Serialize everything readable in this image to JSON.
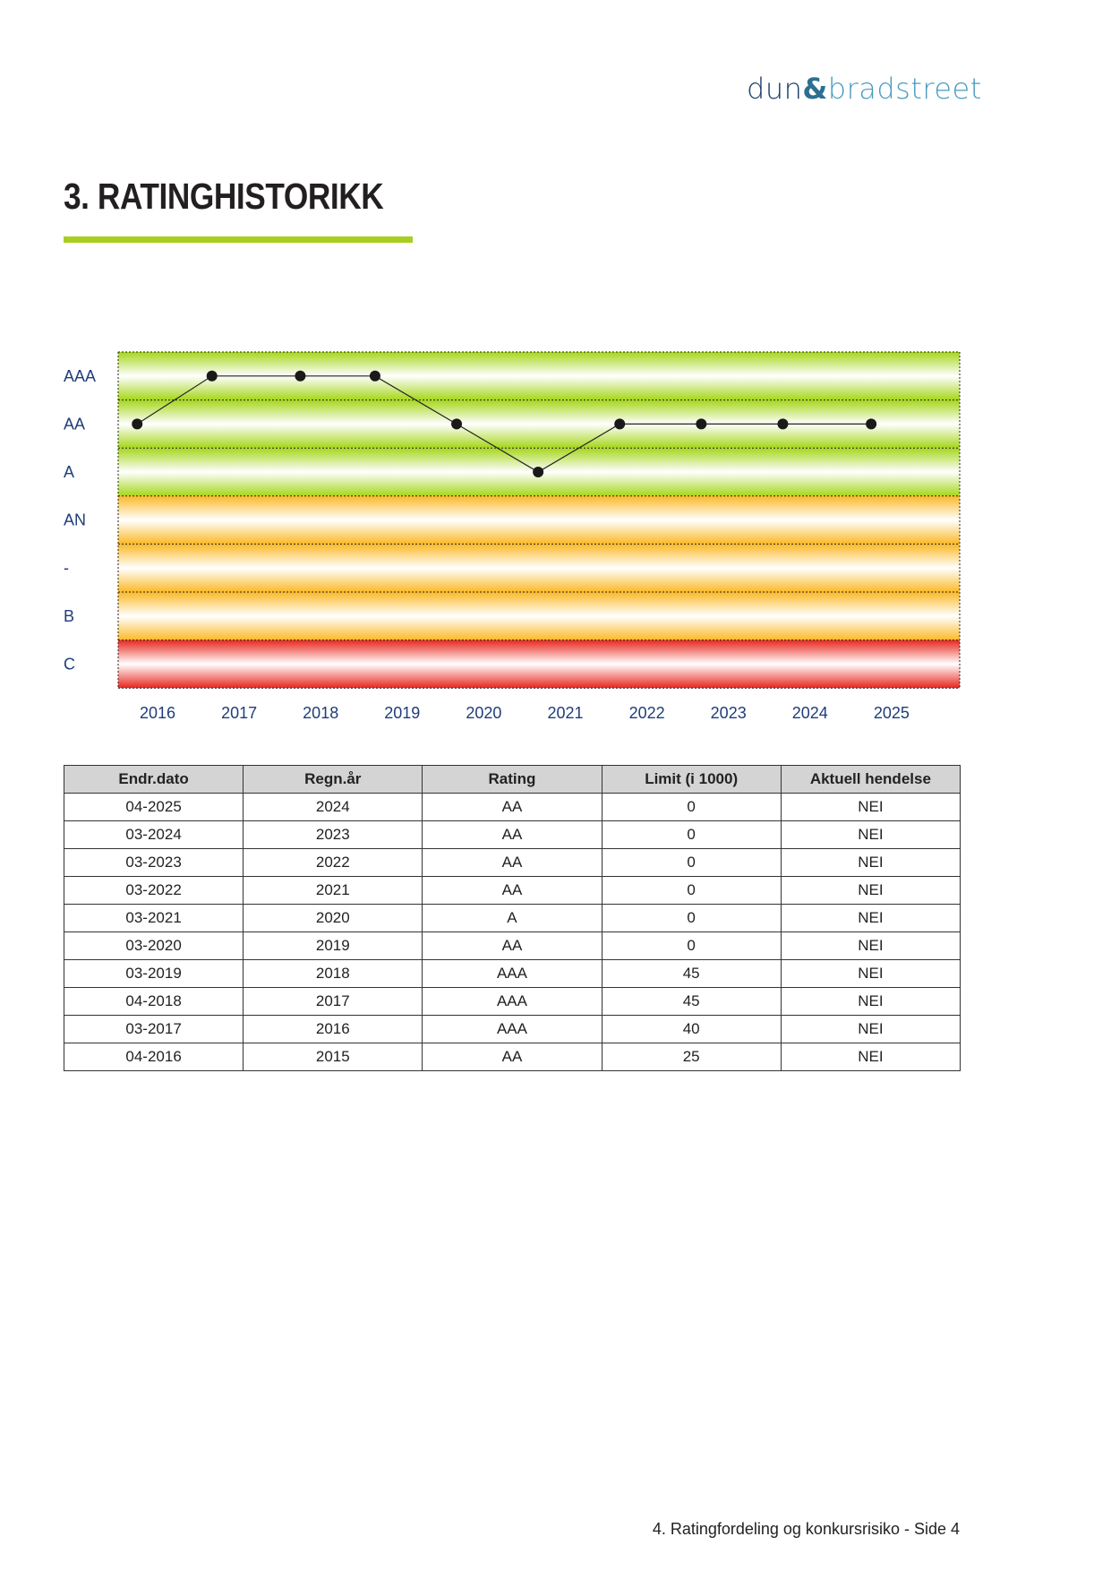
{
  "logo": {
    "text_dun": "dun",
    "text_amp": "&",
    "text_brad": "bradstreet"
  },
  "heading": {
    "title": "3. RATINGHISTORIKK",
    "accent_color": "#a8cf1f"
  },
  "chart_data": {
    "type": "line",
    "y_categories": [
      "AAA",
      "AA",
      "A",
      "AN",
      "-",
      "B",
      "C"
    ],
    "band_colors": {
      "AAA": "#a6d61c",
      "AA": "#a6d61c",
      "A": "#a6d61c",
      "AN": "#fbb928",
      "-": "#fbb928",
      "B": "#fbb928",
      "C": "#e8261d"
    },
    "x_ticks": [
      "2016",
      "2017",
      "2018",
      "2019",
      "2020",
      "2021",
      "2022",
      "2023",
      "2024",
      "2025"
    ],
    "points": [
      {
        "date": "04-2016",
        "rating": "AA"
      },
      {
        "date": "03-2017",
        "rating": "AAA"
      },
      {
        "date": "04-2018",
        "rating": "AAA"
      },
      {
        "date": "03-2019",
        "rating": "AAA"
      },
      {
        "date": "03-2020",
        "rating": "AA"
      },
      {
        "date": "03-2021",
        "rating": "A"
      },
      {
        "date": "03-2022",
        "rating": "AA"
      },
      {
        "date": "03-2023",
        "rating": "AA"
      },
      {
        "date": "03-2024",
        "rating": "AA"
      },
      {
        "date": "04-2025",
        "rating": "AA"
      }
    ],
    "grid": true,
    "label_color": "#1f3d7a"
  },
  "table": {
    "headers": [
      "Endr.dato",
      "Regn.år",
      "Rating",
      "Limit (i 1000)",
      "Aktuell hendelse"
    ],
    "rows": [
      [
        "04-2025",
        "2024",
        "AA",
        "0",
        "NEI"
      ],
      [
        "03-2024",
        "2023",
        "AA",
        "0",
        "NEI"
      ],
      [
        "03-2023",
        "2022",
        "AA",
        "0",
        "NEI"
      ],
      [
        "03-2022",
        "2021",
        "AA",
        "0",
        "NEI"
      ],
      [
        "03-2021",
        "2020",
        "A",
        "0",
        "NEI"
      ],
      [
        "03-2020",
        "2019",
        "AA",
        "0",
        "NEI"
      ],
      [
        "03-2019",
        "2018",
        "AAA",
        "45",
        "NEI"
      ],
      [
        "04-2018",
        "2017",
        "AAA",
        "45",
        "NEI"
      ],
      [
        "03-2017",
        "2016",
        "AAA",
        "40",
        "NEI"
      ],
      [
        "04-2016",
        "2015",
        "AA",
        "25",
        "NEI"
      ]
    ]
  },
  "footer": {
    "text": "4. Ratingfordeling og konkursrisiko - Side 4"
  }
}
